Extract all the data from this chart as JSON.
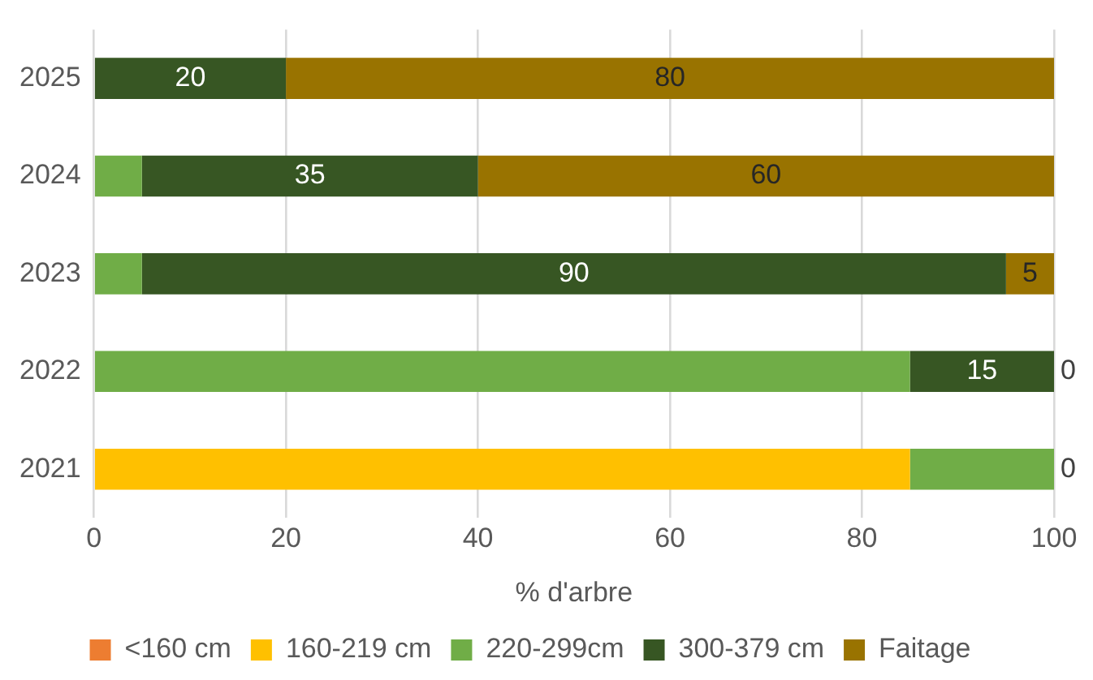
{
  "chart_data": {
    "type": "bar",
    "orientation": "horizontal",
    "stacked": true,
    "xlabel": "% d'arbre",
    "categories": [
      "2025",
      "2024",
      "2023",
      "2022",
      "2021"
    ],
    "series": [
      {
        "name": "<160 cm",
        "color": "#ed7d31",
        "values": [
          0,
          0,
          0,
          0,
          0
        ]
      },
      {
        "name": "160-219 cm",
        "color": "#ffc000",
        "values": [
          0,
          0,
          0,
          0,
          85
        ]
      },
      {
        "name": "220-299cm",
        "color": "#70ad47",
        "values": [
          0,
          5,
          5,
          85,
          15
        ]
      },
      {
        "name": "300-379 cm",
        "color": "#375623",
        "values": [
          20,
          35,
          90,
          15,
          0
        ],
        "value_labels": [
          "20",
          "35",
          "90",
          "15",
          null
        ]
      },
      {
        "name": "Faitage",
        "color": "#997300",
        "values": [
          80,
          60,
          5,
          0,
          0
        ],
        "value_labels": [
          "80",
          "60",
          "5",
          "0",
          "0"
        ]
      }
    ],
    "xlim": [
      0,
      100
    ],
    "xticks": [
      0,
      20,
      40,
      60,
      80,
      100
    ],
    "grid": "x",
    "legend": "bottom"
  }
}
